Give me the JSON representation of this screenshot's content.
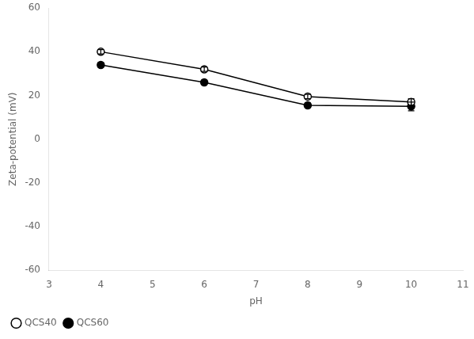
{
  "chart_data": {
    "type": "line",
    "xlabel": "pH",
    "ylabel": "Zeta-potential (mV)",
    "x": [
      4,
      6,
      8,
      10
    ],
    "series": [
      {
        "name": "QCS40",
        "color": "#000000",
        "marker": "circle-open",
        "values": [
          40,
          32,
          19.5,
          17
        ],
        "errors": [
          1.0,
          1.0,
          1.0,
          1.5
        ]
      },
      {
        "name": "QCS60",
        "color": "#000000",
        "marker": "circle",
        "values": [
          34,
          26,
          15.5,
          15
        ],
        "errors": [
          1.0,
          1.0,
          1.0,
          2.0
        ]
      }
    ],
    "xlim": [
      3,
      11
    ],
    "xticks": [
      3,
      4,
      5,
      6,
      7,
      8,
      9,
      10,
      11
    ],
    "ylim": [
      -60,
      60
    ],
    "yticks": [
      -60,
      -40,
      -20,
      0,
      20,
      40,
      60
    ],
    "grid": false,
    "legend": "lower left"
  }
}
